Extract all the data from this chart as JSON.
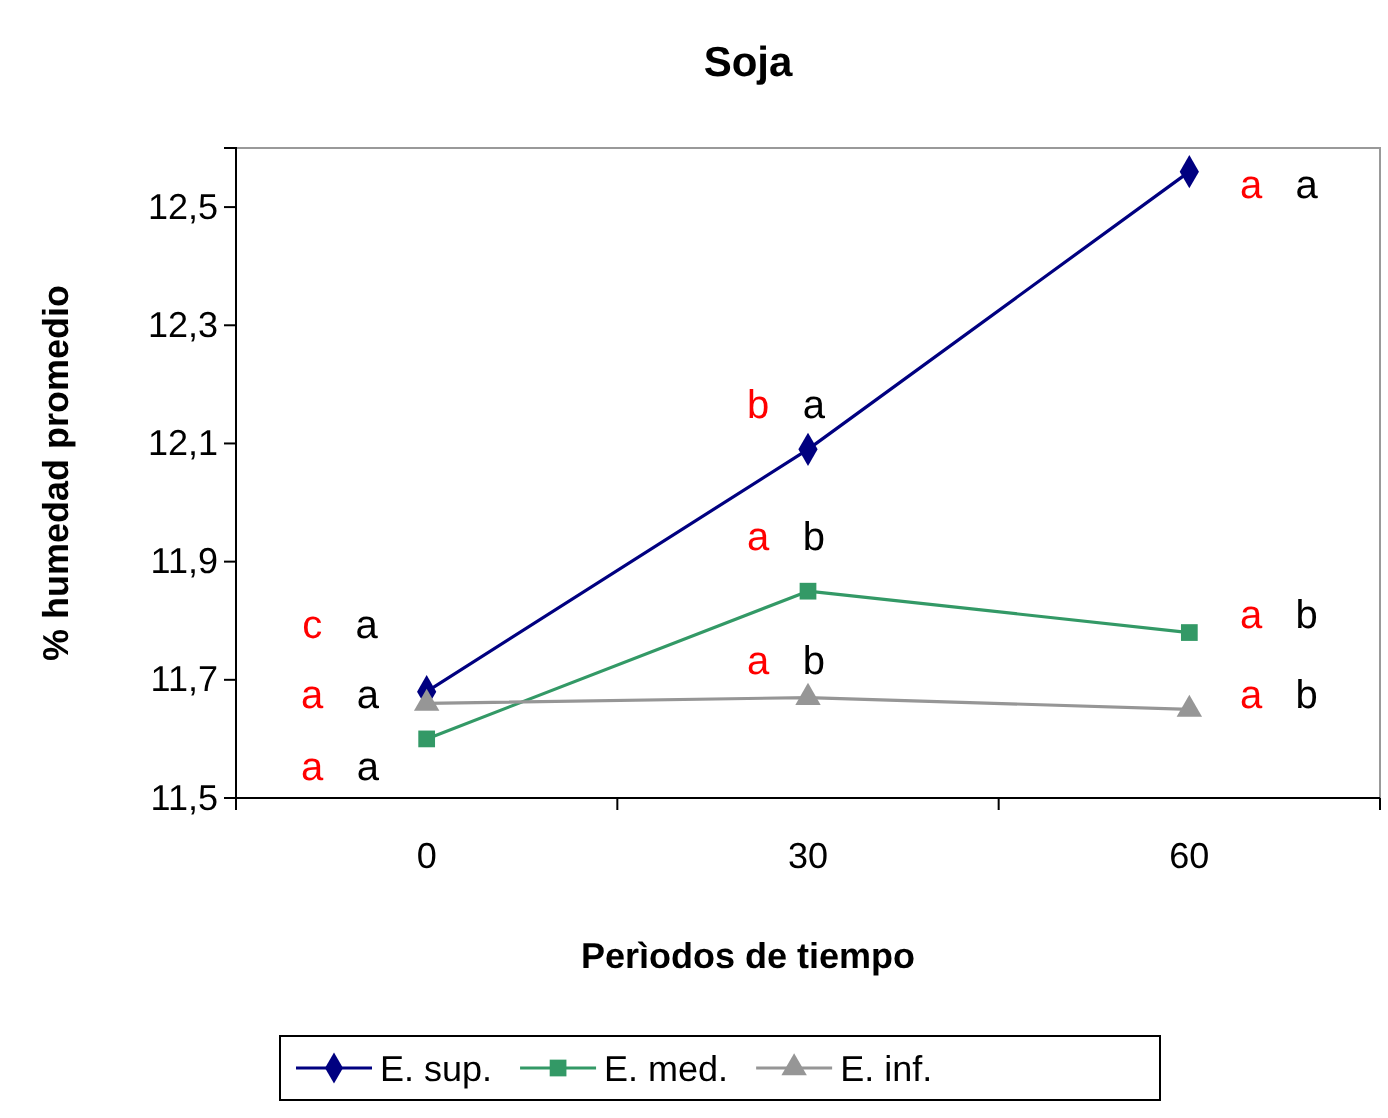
{
  "chart_data": {
    "type": "line",
    "title": "Soja",
    "xlabel": "Perìodos de tiempo",
    "ylabel": "% humedad promedio",
    "categories": [
      "0",
      "30",
      "60"
    ],
    "series": [
      {
        "name": "E. sup.",
        "color": "#000080",
        "marker": "diamond",
        "values": [
          11.68,
          12.09,
          12.56
        ]
      },
      {
        "name": "E. med.",
        "color": "#339966",
        "marker": "square",
        "values": [
          11.6,
          11.85,
          11.78
        ]
      },
      {
        "name": "E. inf.",
        "color": "#969696",
        "marker": "triangle",
        "values": [
          11.66,
          11.67,
          11.65
        ]
      }
    ],
    "ylim": [
      11.5,
      12.6
    ],
    "yticks": [
      {
        "value": 11.5,
        "label": "11,5"
      },
      {
        "value": 11.7,
        "label": "11,7"
      },
      {
        "value": 11.9,
        "label": "11,9"
      },
      {
        "value": 12.1,
        "label": "12,1"
      },
      {
        "value": 12.3,
        "label": "12,3"
      },
      {
        "value": 12.5,
        "label": "12,5"
      }
    ],
    "annotations": [
      "c a",
      "a a",
      "a a",
      "b a",
      "a b",
      "a b",
      "a a",
      "a b",
      "a b"
    ],
    "grid": false,
    "legend": "bottom"
  }
}
